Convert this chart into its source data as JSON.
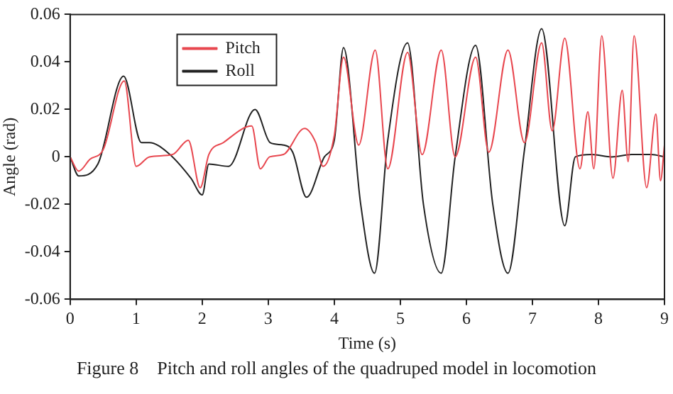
{
  "chart_data": {
    "type": "line",
    "xlabel": "Time (s)",
    "ylabel": "Angle (rad)",
    "xlim": [
      0,
      9
    ],
    "xticks": [
      0,
      1,
      2,
      3,
      4,
      5,
      6,
      7,
      8,
      9
    ],
    "ylim": [
      -0.06,
      0.06
    ],
    "yticks": [
      -0.06,
      -0.04,
      -0.02,
      0,
      0.02,
      0.04,
      0.06
    ],
    "grid": false,
    "legend": "top left",
    "marker": "none",
    "line_style": "solid",
    "annotations": [
      "Figure 8    Pitch and roll angles of the quadruped model in locomotion"
    ],
    "series": [
      {
        "name": "Pitch",
        "color": "#e8474f",
        "x": [
          0,
          0.13,
          0.3,
          0.5,
          0.82,
          1.0,
          1.2,
          1.55,
          1.79,
          1.97,
          2.1,
          2.32,
          2.75,
          2.88,
          3.02,
          3.23,
          3.55,
          3.72,
          3.83,
          4.0,
          4.14,
          4.37,
          4.62,
          4.81,
          5.11,
          5.33,
          5.62,
          5.83,
          6.14,
          6.34,
          6.63,
          6.88,
          7.14,
          7.3,
          7.49,
          7.72,
          7.84,
          7.93,
          8.05,
          8.22,
          8.36,
          8.45,
          8.54,
          8.73,
          8.87,
          8.94,
          9.0
        ],
        "values": [
          0,
          -0.006,
          -0.001,
          0.003,
          0.032,
          -0.004,
          0,
          0.001,
          0.007,
          -0.013,
          0.001,
          0.006,
          0.013,
          -0.005,
          0,
          0.001,
          0.012,
          0.006,
          -0.004,
          0.009,
          0.042,
          0.005,
          0.045,
          -0.005,
          0.044,
          0.001,
          0.045,
          0,
          0.042,
          0.002,
          0.045,
          0.006,
          0.048,
          0.011,
          0.05,
          -0.005,
          0.019,
          -0.005,
          0.051,
          -0.009,
          0.028,
          -0.002,
          0.051,
          -0.013,
          0.018,
          -0.01,
          0.005
        ]
      },
      {
        "name": "Roll",
        "color": "#222222",
        "x": [
          0,
          0.13,
          0.42,
          0.81,
          1.08,
          1.2,
          1.47,
          1.83,
          2.0,
          2.1,
          2.4,
          2.8,
          3.03,
          3.23,
          3.37,
          3.58,
          3.85,
          4.0,
          4.14,
          4.4,
          4.61,
          4.81,
          5.11,
          5.35,
          5.62,
          5.83,
          6.14,
          6.4,
          6.63,
          6.88,
          7.14,
          7.49,
          7.65,
          7.9,
          8.2,
          8.5,
          8.8,
          9.0
        ],
        "values": [
          0,
          -0.008,
          -0.003,
          0.034,
          0.006,
          0.006,
          0.002,
          -0.009,
          -0.016,
          -0.003,
          -0.004,
          0.02,
          0.006,
          0.005,
          0.002,
          -0.017,
          0,
          0.007,
          0.046,
          -0.02,
          -0.049,
          0.007,
          0.048,
          -0.02,
          -0.049,
          0,
          0.047,
          -0.02,
          -0.049,
          0.003,
          0.054,
          -0.029,
          0,
          0.001,
          0,
          0.001,
          0.001,
          0
        ]
      }
    ]
  }
}
